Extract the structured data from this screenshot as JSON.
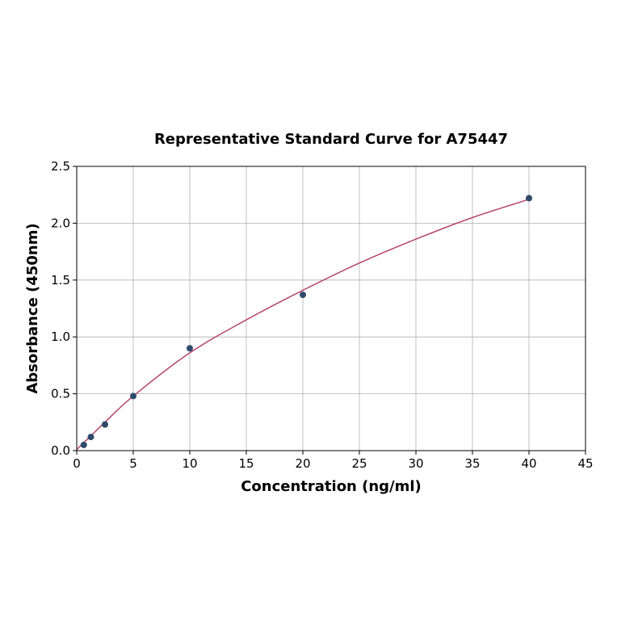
{
  "chart_data": {
    "type": "scatter",
    "title": "Representative Standard Curve for A75447",
    "xlabel": "Concentration (ng/ml)",
    "ylabel": "Absorbance (450nm)",
    "xlim": [
      0,
      45
    ],
    "ylim": [
      0,
      2.5
    ],
    "xticks": [
      0,
      5,
      10,
      15,
      20,
      25,
      30,
      35,
      40,
      45
    ],
    "yticks": [
      0.0,
      0.5,
      1.0,
      1.5,
      2.0,
      2.5
    ],
    "grid": true,
    "points": {
      "x": [
        0.625,
        1.25,
        2.5,
        5,
        10,
        20,
        40
      ],
      "y": [
        0.05,
        0.12,
        0.23,
        0.48,
        0.9,
        1.37,
        2.22
      ]
    },
    "fit_curve": {
      "x": [
        0,
        1.25,
        2.5,
        5,
        10,
        15,
        20,
        25,
        30,
        35,
        40
      ],
      "y": [
        0.01,
        0.13,
        0.25,
        0.48,
        0.86,
        1.15,
        1.41,
        1.65,
        1.86,
        2.05,
        2.21
      ]
    },
    "colors": {
      "points": "#2e4a6b",
      "curve": "#b5456b",
      "grid": "#b0b0b0"
    }
  }
}
